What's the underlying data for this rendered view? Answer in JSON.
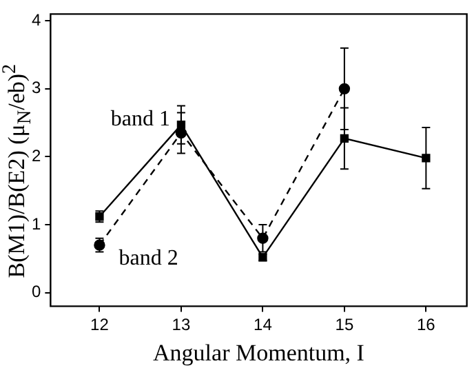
{
  "chart_data": {
    "type": "line",
    "xlabel": "Angular Momentum, I",
    "ylabel": "B(M1)/B(E2) (μ$_{N}$/eb)$^{2}$",
    "xlim": [
      11.4,
      16.5
    ],
    "xticks": [
      12,
      13,
      14,
      15,
      16
    ],
    "ylim": [
      -0.2,
      4.1
    ],
    "yticks": [
      0,
      1,
      2,
      3,
      4
    ],
    "grid": false,
    "legend": false,
    "series": [
      {
        "name": "band 1",
        "color": "#000000",
        "marker": "square",
        "line_style": "solid",
        "x": [
          12,
          13,
          14,
          15,
          16
        ],
        "values": [
          1.12,
          2.47,
          0.52,
          2.27,
          1.98
        ],
        "errors": [
          0.08,
          0.28,
          0.05,
          0.45,
          0.45
        ]
      },
      {
        "name": "band 2",
        "color": "#000000",
        "marker": "circle",
        "line_style": "dashed",
        "x": [
          12,
          13,
          14,
          15
        ],
        "values": [
          0.7,
          2.35,
          0.8,
          3.0
        ],
        "errors": [
          0.1,
          0.3,
          0.2,
          0.6
        ]
      }
    ]
  }
}
